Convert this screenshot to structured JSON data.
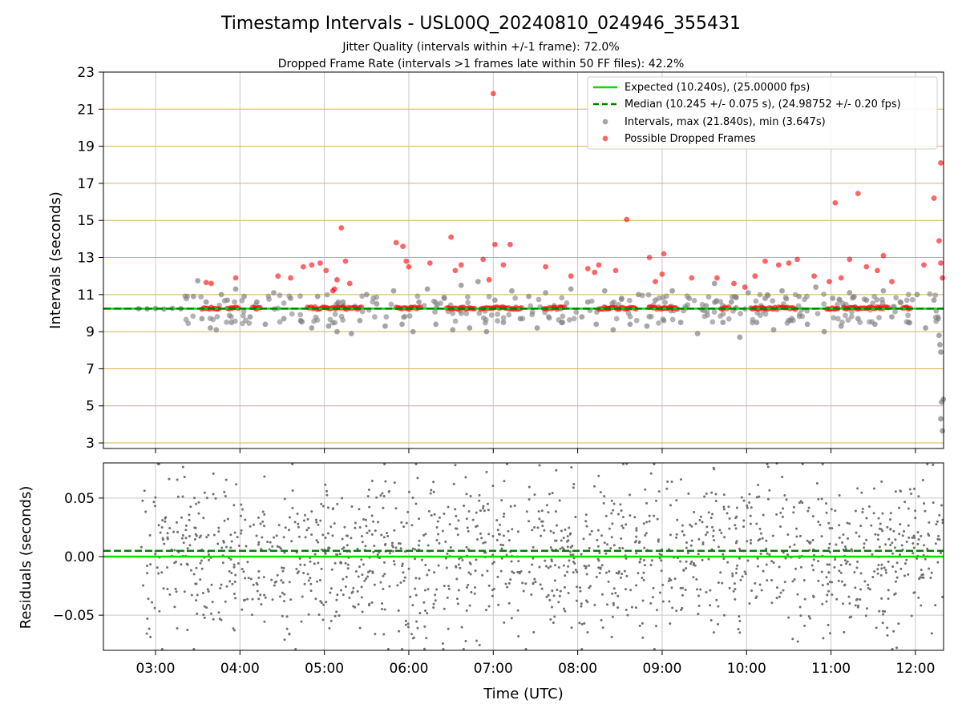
{
  "header": {
    "title": "Timestamp Intervals - USL00Q_20240810_024946_355431",
    "subtitle_1": "Jitter Quality (intervals within +/-1 frame): 72.0%",
    "subtitle_2": "Dropped Frame Rate (intervals >1 frames late within 50 FF files): 42.2%"
  },
  "colors": {
    "expected": "#00dd00",
    "median": "#008000",
    "interval_points": "#808080",
    "dropped_points": "#ff0000",
    "hgrid_top": "#d4b35b",
    "grid": "#c8c8c8",
    "residual_points": "#707070"
  },
  "chart_data": [
    {
      "type": "scatter",
      "panel": "top",
      "ylabel": "Intervals (seconds)",
      "x_kind": "time-hours-utc",
      "xlim": [
        2.383,
        12.333
      ],
      "ylim": [
        2.7,
        23.0
      ],
      "yticks": [
        3,
        5,
        7,
        9,
        11,
        13,
        15,
        17,
        19,
        21,
        23
      ],
      "grid": true,
      "legend": {
        "placement": "top-right",
        "entries": [
          "Expected (10.240s), (25.00000 fps)",
          "Median (10.245 +/- 0.075 s), (24.98752 +/- 0.20 fps)",
          "Intervals, max (21.840s), min (3.647s)",
          "Possible Dropped Frames"
        ]
      },
      "lines": [
        {
          "name": "Expected (10.240s), (25.00000 fps)",
          "y": 10.24,
          "style": "solid"
        },
        {
          "name": "Median (10.245 +/- 0.075 s), (24.98752 +/- 0.20 fps)",
          "y": 10.245,
          "style": "dashed"
        }
      ],
      "series": [
        {
          "name": "Intervals, max (21.840s), min (3.647s)",
          "points": [
            [
              2.8,
              10.24
            ],
            [
              2.9,
              10.23
            ],
            [
              3.0,
              10.25
            ],
            [
              3.1,
              10.22
            ],
            [
              3.2,
              10.26
            ],
            [
              3.3,
              10.24
            ],
            [
              3.45,
              10.9
            ],
            [
              3.5,
              11.75
            ],
            [
              3.55,
              9.7
            ],
            [
              3.6,
              10.6
            ],
            [
              3.65,
              9.2
            ],
            [
              3.72,
              9.1
            ],
            [
              3.78,
              11.0
            ],
            [
              3.85,
              10.7
            ],
            [
              3.9,
              9.5
            ],
            [
              3.95,
              11.3
            ],
            [
              4.05,
              10.9
            ],
            [
              4.12,
              9.8
            ],
            [
              4.2,
              10.6
            ],
            [
              4.3,
              9.4
            ],
            [
              4.4,
              11.1
            ],
            [
              4.52,
              9.7
            ],
            [
              4.6,
              10.8
            ],
            [
              4.72,
              9.6
            ],
            [
              4.85,
              9.2
            ],
            [
              4.92,
              10.9
            ],
            [
              5.05,
              9.3
            ],
            [
              5.15,
              9.0
            ],
            [
              5.22,
              10.6
            ],
            [
              5.32,
              8.9
            ],
            [
              5.42,
              9.6
            ],
            [
              5.5,
              11.0
            ],
            [
              5.62,
              10.5
            ],
            [
              5.72,
              9.3
            ],
            [
              5.82,
              11.2
            ],
            [
              5.92,
              9.4
            ],
            [
              6.05,
              9.0
            ],
            [
              6.12,
              10.6
            ],
            [
              6.22,
              11.3
            ],
            [
              6.32,
              9.4
            ],
            [
              6.42,
              10.8
            ],
            [
              6.52,
              9.1
            ],
            [
              6.62,
              11.5
            ],
            [
              6.72,
              9.2
            ],
            [
              6.82,
              11.7
            ],
            [
              6.92,
              9.0
            ],
            [
              7.02,
              10.7
            ],
            [
              7.12,
              9.5
            ],
            [
              7.22,
              11.2
            ],
            [
              7.32,
              9.7
            ],
            [
              7.42,
              10.9
            ],
            [
              7.52,
              9.2
            ],
            [
              7.62,
              11.1
            ],
            [
              7.72,
              10.4
            ],
            [
              7.82,
              9.5
            ],
            [
              7.92,
              11.3
            ],
            [
              8.05,
              9.8
            ],
            [
              8.12,
              10.6
            ],
            [
              8.22,
              9.4
            ],
            [
              8.32,
              11.2
            ],
            [
              8.42,
              9.1
            ],
            [
              8.52,
              10.8
            ],
            [
              8.62,
              9.4
            ],
            [
              8.72,
              11.0
            ],
            [
              8.82,
              9.3
            ],
            [
              8.92,
              10.7
            ],
            [
              9.02,
              9.6
            ],
            [
              9.12,
              11.2
            ],
            [
              9.22,
              9.5
            ],
            [
              9.32,
              10.8
            ],
            [
              9.42,
              8.9
            ],
            [
              9.52,
              10.4
            ],
            [
              9.62,
              11.6
            ],
            [
              9.72,
              9.5
            ],
            [
              9.82,
              10.6
            ],
            [
              9.92,
              8.7
            ],
            [
              10.02,
              11.1
            ],
            [
              10.12,
              9.5
            ],
            [
              10.22,
              10.8
            ],
            [
              10.32,
              9.1
            ],
            [
              10.42,
              11.2
            ],
            [
              10.52,
              9.6
            ],
            [
              10.62,
              10.9
            ],
            [
              10.72,
              9.4
            ],
            [
              10.82,
              11.4
            ],
            [
              10.92,
              9.0
            ],
            [
              11.02,
              10.8
            ],
            [
              11.12,
              9.3
            ],
            [
              11.22,
              11.1
            ],
            [
              11.32,
              9.7
            ],
            [
              11.42,
              10.7
            ],
            [
              11.52,
              9.4
            ],
            [
              11.62,
              11.2
            ],
            [
              11.72,
              9.8
            ],
            [
              11.82,
              10.6
            ],
            [
              11.92,
              9.5
            ],
            [
              12.02,
              11.0
            ],
            [
              12.12,
              9.2
            ],
            [
              12.22,
              10.7
            ],
            [
              12.28,
              8.8
            ],
            [
              12.29,
              8.3
            ],
            [
              12.3,
              7.9
            ],
            [
              12.31,
              5.2
            ],
            [
              12.3,
              4.3
            ],
            [
              12.32,
              3.65
            ],
            [
              12.33,
              5.35
            ],
            [
              12.27,
              9.7
            ]
          ]
        },
        {
          "name": "Possible Dropped Frames",
          "points": [
            [
              3.6,
              11.65
            ],
            [
              3.66,
              11.6
            ],
            [
              3.95,
              11.9
            ],
            [
              4.45,
              12.0
            ],
            [
              4.6,
              11.9
            ],
            [
              4.75,
              12.5
            ],
            [
              4.85,
              12.6
            ],
            [
              4.95,
              12.7
            ],
            [
              5.02,
              12.3
            ],
            [
              5.1,
              11.2
            ],
            [
              5.12,
              11.3
            ],
            [
              5.15,
              11.8
            ],
            [
              5.2,
              14.6
            ],
            [
              5.25,
              12.8
            ],
            [
              5.3,
              11.6
            ],
            [
              5.85,
              13.8
            ],
            [
              5.93,
              13.6
            ],
            [
              5.97,
              12.8
            ],
            [
              6.0,
              12.5
            ],
            [
              6.25,
              12.7
            ],
            [
              6.5,
              14.1
            ],
            [
              6.55,
              12.3
            ],
            [
              6.62,
              12.6
            ],
            [
              6.88,
              12.9
            ],
            [
              6.95,
              11.8
            ],
            [
              7.0,
              21.84
            ],
            [
              7.02,
              13.7
            ],
            [
              7.12,
              12.6
            ],
            [
              7.2,
              13.7
            ],
            [
              7.62,
              12.5
            ],
            [
              7.92,
              12.0
            ],
            [
              8.12,
              12.4
            ],
            [
              8.2,
              12.2
            ],
            [
              8.25,
              12.6
            ],
            [
              8.45,
              12.3
            ],
            [
              8.58,
              15.05
            ],
            [
              8.85,
              13.0
            ],
            [
              8.92,
              11.7
            ],
            [
              9.0,
              12.1
            ],
            [
              9.02,
              13.2
            ],
            [
              9.35,
              11.9
            ],
            [
              9.65,
              11.9
            ],
            [
              9.85,
              11.6
            ],
            [
              9.98,
              11.4
            ],
            [
              10.1,
              12.0
            ],
            [
              10.22,
              12.8
            ],
            [
              10.38,
              12.6
            ],
            [
              10.5,
              12.7
            ],
            [
              10.6,
              12.9
            ],
            [
              10.8,
              12.0
            ],
            [
              10.98,
              11.7
            ],
            [
              11.05,
              15.95
            ],
            [
              11.12,
              11.9
            ],
            [
              11.22,
              12.9
            ],
            [
              11.32,
              16.45
            ],
            [
              11.42,
              12.5
            ],
            [
              11.55,
              12.3
            ],
            [
              11.62,
              13.1
            ],
            [
              11.72,
              11.7
            ],
            [
              12.1,
              12.6
            ],
            [
              12.22,
              16.2
            ],
            [
              12.28,
              13.9
            ],
            [
              12.3,
              18.1
            ],
            [
              12.3,
              12.7
            ],
            [
              12.32,
              11.9
            ]
          ]
        }
      ]
    },
    {
      "type": "scatter",
      "panel": "bottom",
      "xlabel": "Time (UTC)",
      "ylabel": "Residuals (seconds)",
      "x_kind": "time-hours-utc",
      "xlim": [
        2.383,
        12.333
      ],
      "ylim": [
        -0.08,
        0.08
      ],
      "yticks": [
        -0.05,
        0.0,
        0.05
      ],
      "ytick_labels": [
        "−0.05",
        "0.00",
        "0.05"
      ],
      "xticks": [
        3,
        4,
        5,
        6,
        7,
        8,
        9,
        10,
        11,
        12
      ],
      "xtick_labels": [
        "03:00",
        "04:00",
        "05:00",
        "06:00",
        "07:00",
        "08:00",
        "09:00",
        "10:00",
        "11:00",
        "12:00"
      ],
      "grid": true,
      "lines": [
        {
          "name": "expected",
          "y": 0.0,
          "style": "solid"
        },
        {
          "name": "median",
          "y": 0.005,
          "style": "dashed"
        }
      ],
      "residual_range": [
        -0.08,
        0.08
      ],
      "residual_typical_spread": 0.045,
      "residual_x_range": [
        2.83,
        12.33
      ]
    }
  ]
}
